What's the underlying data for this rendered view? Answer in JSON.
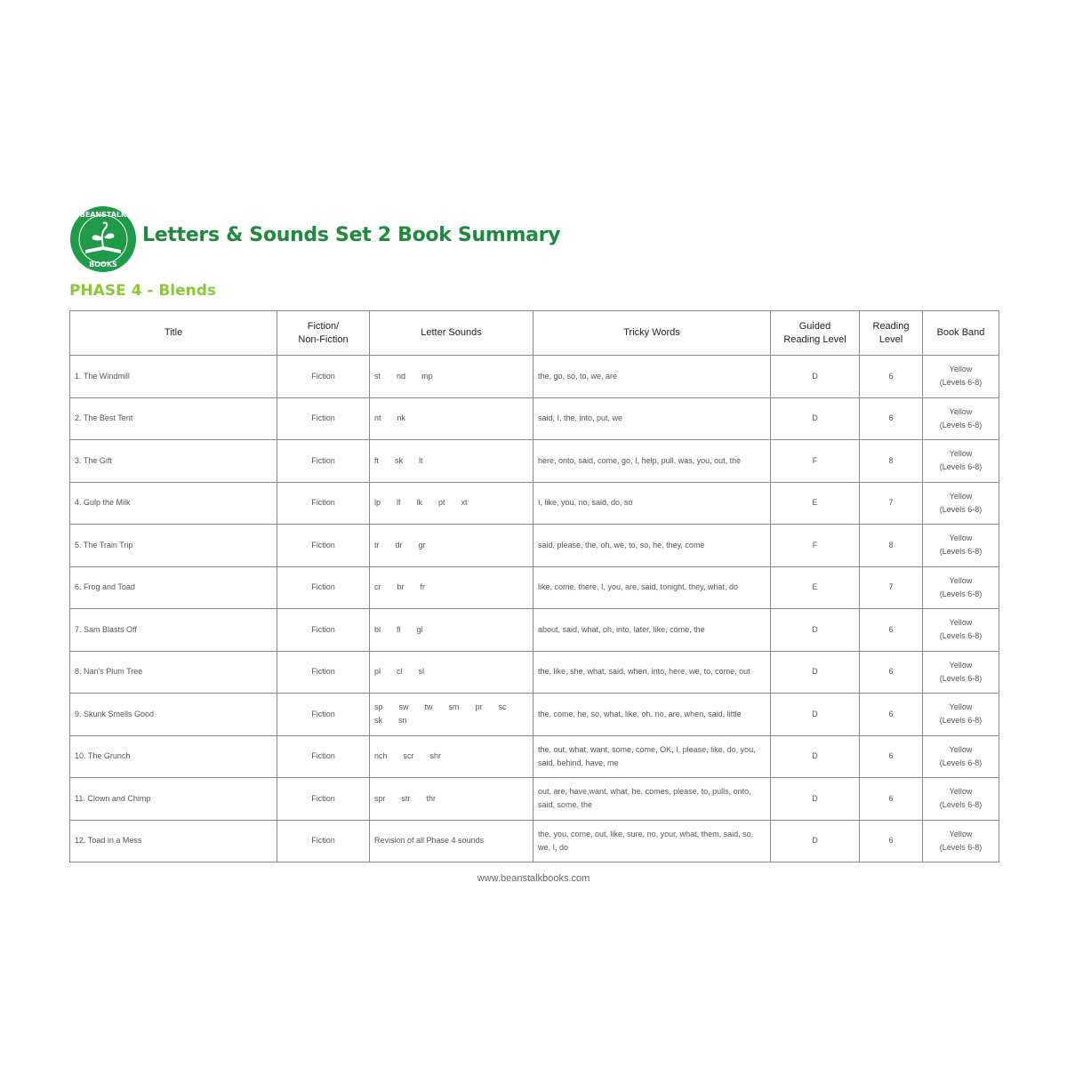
{
  "header": {
    "title": "Letters & Sounds Set 2 Book Summary",
    "phase": "PHASE 4 - Blends",
    "logo_text": "BEANSTALK BOOKS",
    "brand_color": "#1e8a3e",
    "phase_color": "#8cc63f"
  },
  "columns": [
    "Title",
    "Fiction/\nNon-Fiction",
    "Letter Sounds",
    "Tricky Words",
    "Guided\nReading Level",
    "Reading\nLevel",
    "Book Band"
  ],
  "rows": [
    {
      "title": "1. The Windmill",
      "type": "Fiction",
      "sounds": [
        "st",
        "nd",
        "mp"
      ],
      "tricky": "the, go, so, to, we, are",
      "guided": "D",
      "level": "6",
      "band": "Yellow",
      "band_range": "(Levels 6-8)"
    },
    {
      "title": "2. The Best Tent",
      "type": "Fiction",
      "sounds": [
        "nt",
        "nk"
      ],
      "tricky": "said, I, the, into, put, we",
      "guided": "D",
      "level": "6",
      "band": "Yellow",
      "band_range": "(Levels 6-8)"
    },
    {
      "title": "3. The Gift",
      "type": "Fiction",
      "sounds": [
        "ft",
        "sk",
        "lt"
      ],
      "tricky": "here, onto, said, come, go, I, help, pull, was, you, out, the",
      "guided": "F",
      "level": "8",
      "band": "Yellow",
      "band_range": "(Levels 6-8)"
    },
    {
      "title": "4. Gulp the Milk",
      "type": "Fiction",
      "sounds": [
        "lp",
        "lf",
        "lk",
        "pt",
        "xt"
      ],
      "tricky": "I, like, you, no, said, do, so",
      "guided": "E",
      "level": "7",
      "band": "Yellow",
      "band_range": "(Levels 6-8)"
    },
    {
      "title": "5. The Train Trip",
      "type": "Fiction",
      "sounds": [
        "tr",
        "dr",
        "gr"
      ],
      "tricky": "said, please, the, oh, we, to, so, he, they, come",
      "guided": "F",
      "level": "8",
      "band": "Yellow",
      "band_range": "(Levels 6-8)"
    },
    {
      "title": "6. Frog and Toad",
      "type": "Fiction",
      "sounds": [
        "cr",
        "br",
        "fr"
      ],
      "tricky": "like, come, there, I, you, are, said, tonight, they, what, do",
      "guided": "E",
      "level": "7",
      "band": "Yellow",
      "band_range": "(Levels 6-8)"
    },
    {
      "title": "7. Sam Blasts Off",
      "type": "Fiction",
      "sounds": [
        "bl",
        "fl",
        "gl"
      ],
      "tricky": "about, said, what, oh, into, later, like, come, the",
      "guided": "D",
      "level": "6",
      "band": "Yellow",
      "band_range": "(Levels 6-8)"
    },
    {
      "title": "8. Nan's Plum Tree",
      "type": "Fiction",
      "sounds": [
        "pl",
        "cl",
        "sl"
      ],
      "tricky": "the, like, she, what, said, when, into, here, we, to, come, out",
      "guided": "D",
      "level": "6",
      "band": "Yellow",
      "band_range": "(Levels 6-8)"
    },
    {
      "title": "9. Skunk Smells Good",
      "type": "Fiction",
      "sounds": [
        "sp",
        "sw",
        "tw",
        "sm",
        "pr",
        "sc",
        "sk",
        "sn"
      ],
      "tricky": "the, come, he, so, what, like, oh, no, are, when, said, little",
      "guided": "D",
      "level": "6",
      "band": "Yellow",
      "band_range": "(Levels 6-8)"
    },
    {
      "title": "10. The Grunch",
      "type": "Fiction",
      "sounds": [
        "nch",
        "scr",
        "shr"
      ],
      "tricky": "the, out, what, want, some, come, OK, I, please, like, do, you, said, behind, have, me",
      "guided": "D",
      "level": "6",
      "band": "Yellow",
      "band_range": "(Levels 6-8)"
    },
    {
      "title": "11. Clown and Chimp",
      "type": "Fiction",
      "sounds": [
        "spr",
        "str",
        "thr"
      ],
      "tricky": "out, are, have,want, what, he, comes, please, to, pulls, onto, said, some, the",
      "guided": "D",
      "level": "6",
      "band": "Yellow",
      "band_range": "(Levels 6-8)"
    },
    {
      "title": "12. Toad in a Mess",
      "type": "Fiction",
      "sounds": [
        "Revision of all Phase 4 sounds"
      ],
      "tricky": "the, you, come, out, like, sure, no, your, what, them, said, so, we, I, do",
      "guided": "D",
      "level": "6",
      "band": "Yellow",
      "band_range": "(Levels 6-8)"
    }
  ],
  "footer": {
    "url": "www.beanstalkbooks.com"
  }
}
